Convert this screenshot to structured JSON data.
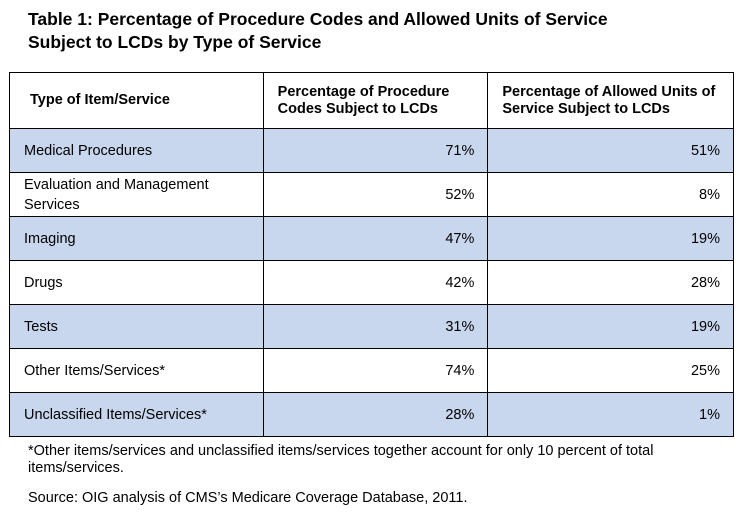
{
  "title": {
    "line1": "Table 1:  Percentage of Procedure Codes and Allowed Units of Service",
    "line2": "Subject to LCDs by Type of Service"
  },
  "table": {
    "headers": [
      "Type of Item/Service",
      "Percentage of Procedure Codes Subject to LCDs",
      "Percentage of Allowed Units of Service Subject to LCDs"
    ],
    "rows": [
      {
        "type": "Medical Procedures",
        "codes_pct": "71%",
        "units_pct": "51%"
      },
      {
        "type": "Evaluation and Management Services",
        "codes_pct": "52%",
        "units_pct": "8%"
      },
      {
        "type": "Imaging",
        "codes_pct": "47%",
        "units_pct": "19%"
      },
      {
        "type": "Drugs",
        "codes_pct": "42%",
        "units_pct": "28%"
      },
      {
        "type": "Tests",
        "codes_pct": "31%",
        "units_pct": "19%"
      },
      {
        "type": "Other Items/Services*",
        "codes_pct": "74%",
        "units_pct": "25%"
      },
      {
        "type": "Unclassified Items/Services*",
        "codes_pct": "28%",
        "units_pct": "1%"
      }
    ],
    "shaded_row_color": "#c9d7ee"
  },
  "footnote": "*Other items/services and unclassified items/services together account for only 10 percent of total items/services.",
  "source": "Source:  OIG analysis of CMS’s Medicare Coverage Database, 2011."
}
